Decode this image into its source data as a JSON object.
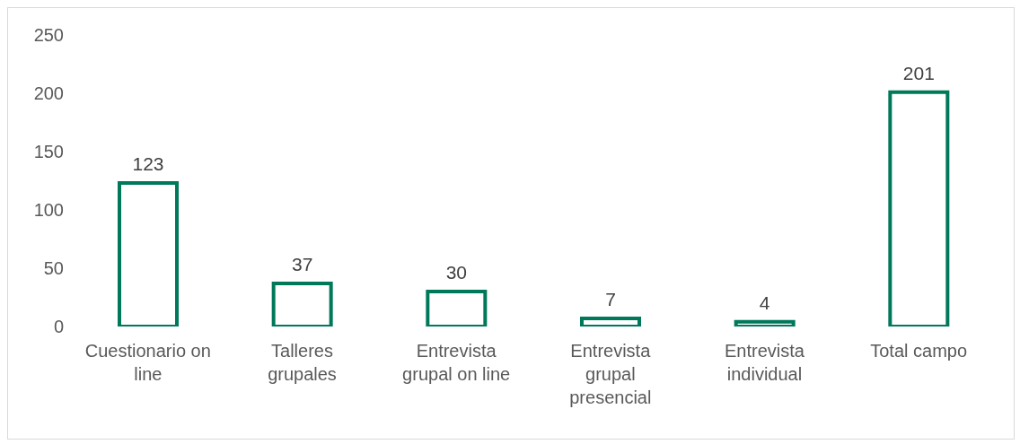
{
  "chart_data": {
    "type": "bar",
    "categories": [
      "Cuestionario on line",
      "Talleres grupales",
      "Entrevista grupal on line",
      "Entrevista grupal presencial",
      "Entrevista individual",
      "Total campo"
    ],
    "values": [
      123,
      37,
      30,
      7,
      4,
      201
    ],
    "color": "#00785a",
    "ylim": [
      0,
      250
    ],
    "yticks": [
      0,
      50,
      100,
      150,
      200,
      250
    ],
    "grid": false,
    "data_labels": true
  }
}
